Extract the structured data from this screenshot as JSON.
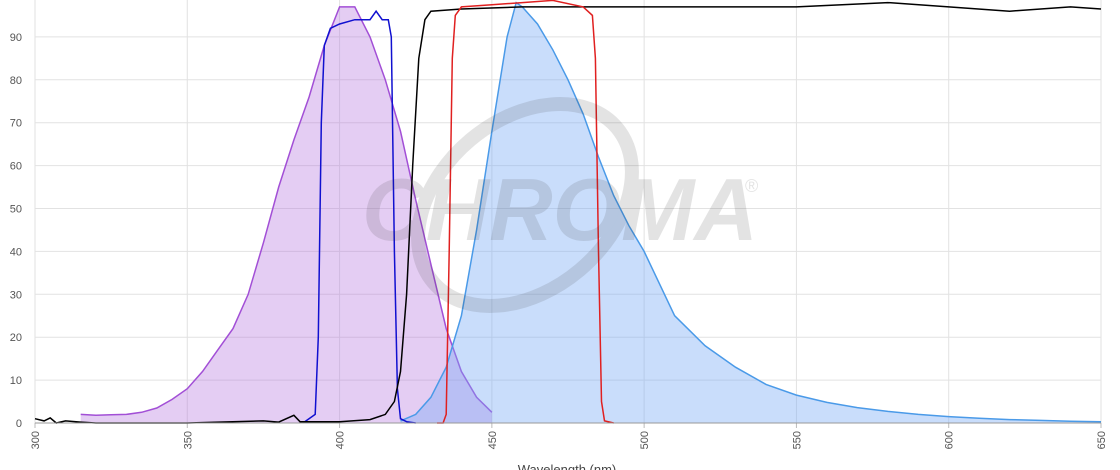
{
  "chart_data": {
    "type": "line",
    "x_label": "Wavelength (nm)",
    "watermark": "CHROMA",
    "watermark_mark": "®",
    "xlim": [
      300,
      650
    ],
    "xticks": [
      300,
      350,
      400,
      450,
      500,
      550,
      600,
      650
    ],
    "ylim": [
      0,
      98.6
    ],
    "yticks": [
      0,
      10,
      20,
      30,
      40,
      50,
      60,
      70,
      80,
      90
    ],
    "grid": true,
    "series": [
      {
        "color": "#a24fd6",
        "fill": "rgba(178,112,222,0.35)",
        "x": [
          315,
          320,
          325,
          330,
          335,
          340,
          345,
          350,
          355,
          360,
          365,
          370,
          375,
          380,
          385,
          390,
          395,
          400,
          405,
          410,
          415,
          420,
          425,
          430,
          435,
          440,
          445,
          450
        ],
        "values": [
          2,
          1.8,
          1.9,
          2,
          2.5,
          3.5,
          5.5,
          8,
          12,
          17,
          22,
          30,
          42,
          55,
          66,
          76,
          88,
          97,
          97,
          90,
          80,
          68,
          52,
          37,
          22,
          12,
          6,
          2.5
        ]
      },
      {
        "color": "#4a9ae8",
        "fill": "rgba(120,170,245,0.4)",
        "x": [
          420,
          425,
          430,
          435,
          440,
          445,
          450,
          455,
          458,
          460,
          465,
          470,
          475,
          480,
          485,
          490,
          495,
          500,
          510,
          520,
          530,
          540,
          550,
          560,
          570,
          580,
          590,
          600,
          610,
          620,
          630,
          640,
          650
        ],
        "values": [
          0.5,
          2,
          6,
          13,
          25,
          45,
          68,
          90,
          98,
          97,
          93,
          87,
          80,
          72,
          62,
          53,
          46,
          40,
          25,
          18,
          13,
          9,
          6.5,
          4.8,
          3.6,
          2.7,
          2,
          1.5,
          1.1,
          0.8,
          0.6,
          0.4,
          0.3
        ]
      },
      {
        "color": "#1010d0",
        "fill": null,
        "x": [
          388,
          392,
          393,
          394,
          395,
          397,
          400,
          405,
          410,
          412,
          414,
          416,
          417,
          418,
          419,
          420,
          422,
          425
        ],
        "values": [
          0,
          2,
          20,
          70,
          88,
          92,
          93,
          94,
          94,
          96,
          94,
          94,
          90,
          40,
          8,
          1,
          0.3,
          0
        ]
      },
      {
        "color": "#000000",
        "fill": null,
        "x": [
          300,
          303,
          305,
          307,
          310,
          315,
          320,
          350,
          375,
          380,
          385,
          387,
          400,
          410,
          415,
          418,
          420,
          422,
          424,
          426,
          428,
          430,
          440,
          460,
          500,
          550,
          580,
          600,
          620,
          640,
          650
        ],
        "values": [
          1,
          0.5,
          1.2,
          0,
          0.5,
          0.2,
          0,
          0,
          0.5,
          0.2,
          1.8,
          0.3,
          0.3,
          0.8,
          2,
          5,
          12,
          30,
          60,
          85,
          94,
          96,
          96.5,
          97,
          97,
          97,
          98,
          97,
          96,
          97,
          96.5
        ]
      },
      {
        "color": "#e02020",
        "fill": null,
        "x": [
          432,
          434,
          435,
          436,
          437,
          438,
          440,
          450,
          460,
          470,
          480,
          483,
          484,
          485,
          486,
          487,
          490
        ],
        "values": [
          0,
          0,
          2,
          40,
          85,
          95,
          97,
          97.5,
          98,
          98.5,
          97,
          95,
          85,
          40,
          5,
          0.5,
          0
        ]
      }
    ]
  }
}
